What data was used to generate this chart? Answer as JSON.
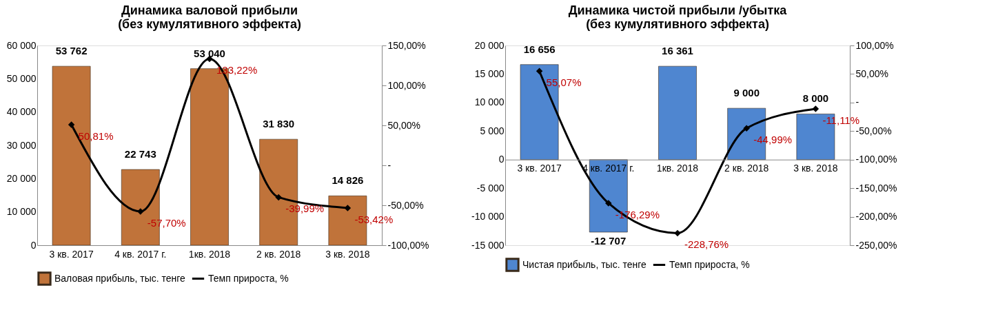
{
  "chart_data": [
    {
      "type": "bar",
      "title": "Динамика валовой прибыли\n(без кумулятивного эффекта)",
      "categories": [
        "3 кв. 2017",
        "4 кв. 2017 г.",
        "1кв. 2018",
        "2 кв. 2018",
        "3 кв. 2018"
      ],
      "series": [
        {
          "name": "Валовая прибыль, тыс. тенге",
          "color": "#c0733a",
          "values": [
            53762,
            22743,
            53040,
            31830,
            14826
          ],
          "value_labels": [
            "53 762",
            "22 743",
            "53 040",
            "31 830",
            "14 826"
          ]
        },
        {
          "name": "Темп прироста, %",
          "type": "line",
          "axis": "y2",
          "color": "#000000",
          "marker": "diamond",
          "values": [
            50.81,
            -57.7,
            133.22,
            -39.99,
            -53.42
          ],
          "value_labels": [
            "50,81%",
            "-57,70%",
            "133,22%",
            "-39,99%",
            "-53,42%"
          ]
        }
      ],
      "ylim": [
        0,
        60000
      ],
      "yticks": [
        {
          "value": 0,
          "label": "0"
        },
        {
          "value": 10000,
          "label": "10 000"
        },
        {
          "value": 20000,
          "label": "20 000"
        },
        {
          "value": 30000,
          "label": "30 000"
        },
        {
          "value": 40000,
          "label": "40 000"
        },
        {
          "value": 50000,
          "label": "50 000"
        },
        {
          "value": 60000,
          "label": "60 000"
        }
      ],
      "y2lim": [
        -100,
        150
      ],
      "y2ticks": [
        {
          "value": -100,
          "label": "-100,00%"
        },
        {
          "value": -50,
          "label": "-50,00%"
        },
        {
          "value": 0,
          "label": "-"
        },
        {
          "value": 50,
          "label": "50,00%"
        },
        {
          "value": 100,
          "label": "100,00%"
        },
        {
          "value": 150,
          "label": "150,00%"
        }
      ],
      "grid": false,
      "legend": "bottom"
    },
    {
      "type": "bar",
      "title": "Динамика чистой прибыли /убытка\n(без кумулятивного эффекта)",
      "categories": [
        "3 кв. 2017",
        "4 кв. 2017 г.",
        "1кв. 2018",
        "2 кв. 2018",
        "3 кв. 2018"
      ],
      "series": [
        {
          "name": "Чистая прибыль, тыс. тенге",
          "color": "#4f86d0",
          "values": [
            16656,
            -12707,
            16361,
            9000,
            8000
          ],
          "value_labels": [
            "16 656",
            "-12 707",
            "16 361",
            "9 000",
            "8 000"
          ]
        },
        {
          "name": "Темп прироста, %",
          "type": "line",
          "axis": "y2",
          "color": "#000000",
          "marker": "diamond",
          "values": [
            55.07,
            -176.29,
            -228.76,
            -44.99,
            -11.11
          ],
          "value_labels": [
            "55,07%",
            "-176,29%",
            "-228,76%",
            "-44,99%",
            "-11,11%"
          ]
        }
      ],
      "ylim": [
        -15000,
        20000
      ],
      "yticks": [
        {
          "value": -15000,
          "label": "-15 000"
        },
        {
          "value": -10000,
          "label": "-10 000"
        },
        {
          "value": -5000,
          "label": "-5 000"
        },
        {
          "value": 0,
          "label": "0"
        },
        {
          "value": 5000,
          "label": "5 000"
        },
        {
          "value": 10000,
          "label": "10 000"
        },
        {
          "value": 15000,
          "label": "15 000"
        },
        {
          "value": 20000,
          "label": "20 000"
        }
      ],
      "y2lim": [
        -250,
        100
      ],
      "y2ticks": [
        {
          "value": -250,
          "label": "-250,00%"
        },
        {
          "value": -200,
          "label": "-200,00%"
        },
        {
          "value": -150,
          "label": "-150,00%"
        },
        {
          "value": -100,
          "label": "-100,00%"
        },
        {
          "value": -50,
          "label": "-50,00%"
        },
        {
          "value": 0,
          "label": "-"
        },
        {
          "value": 50,
          "label": "50,00%"
        },
        {
          "value": 100,
          "label": "100,00%"
        }
      ],
      "grid": false,
      "legend": "bottom"
    }
  ]
}
